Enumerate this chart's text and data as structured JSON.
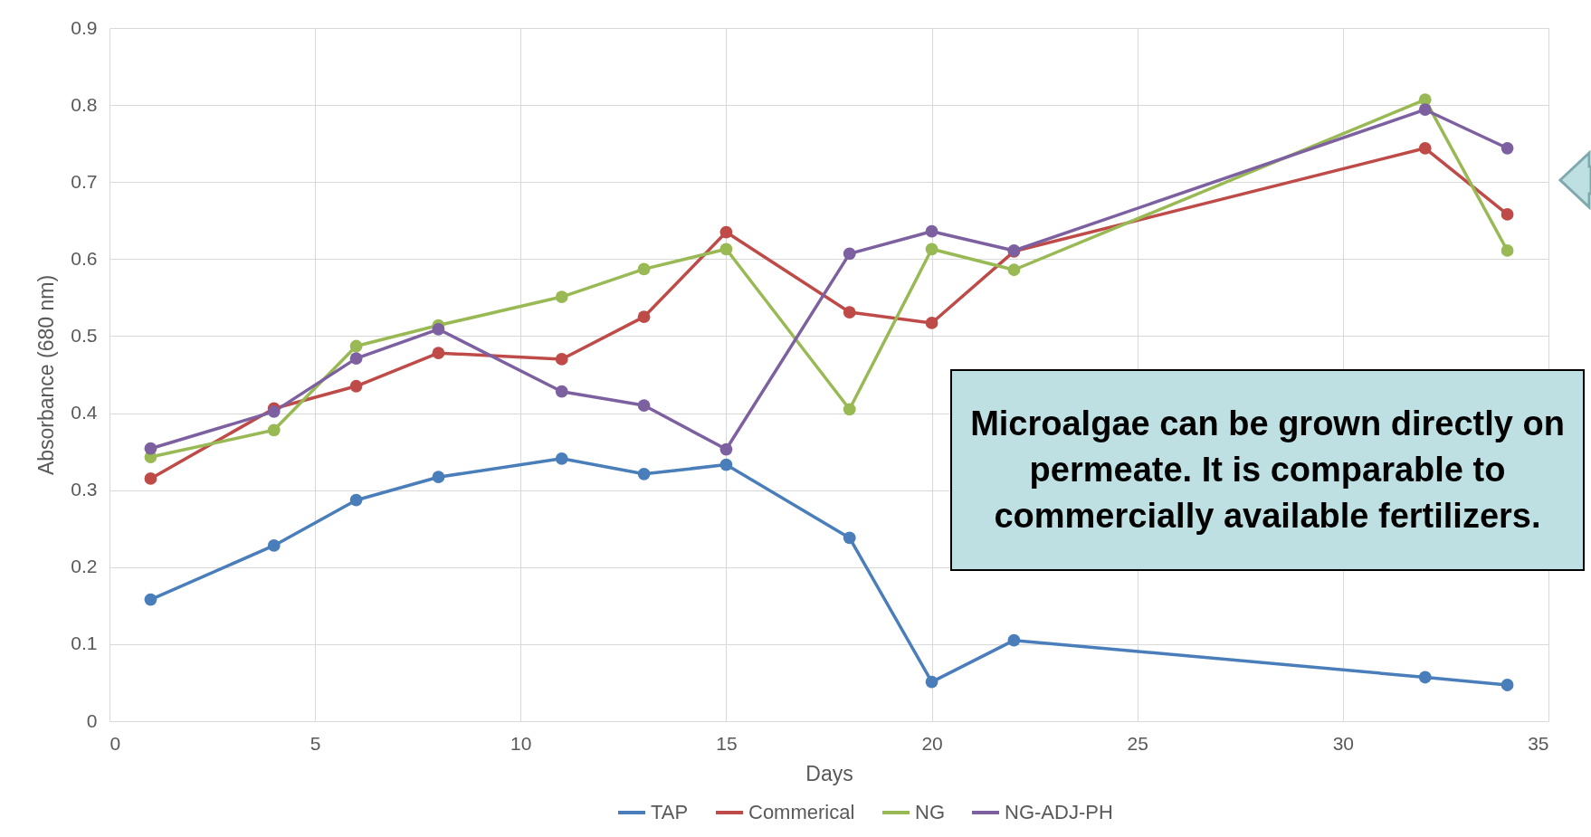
{
  "chart_data": {
    "type": "line",
    "xlabel": "Days",
    "ylabel": "Absorbance (680 nm)",
    "x": [
      1,
      4,
      6,
      8,
      11,
      13,
      15,
      18,
      20,
      22,
      32,
      34
    ],
    "series": [
      {
        "name": "TAP",
        "color": "#4a7ebb",
        "values": [
          0.158,
          0.228,
          0.287,
          0.317,
          0.341,
          0.321,
          0.333,
          0.238,
          0.051,
          0.105,
          0.057,
          0.047
        ]
      },
      {
        "name": "Commerical",
        "color": "#be4b48",
        "values": [
          0.315,
          0.406,
          0.435,
          0.478,
          0.47,
          0.525,
          0.635,
          0.531,
          0.517,
          0.61,
          0.744,
          0.658
        ]
      },
      {
        "name": "NG",
        "color": "#98b954",
        "values": [
          0.343,
          0.378,
          0.487,
          0.514,
          0.551,
          0.587,
          0.613,
          0.405,
          0.613,
          0.586,
          0.807,
          0.611
        ]
      },
      {
        "name": "NG-ADJ-PH",
        "color": "#7d60a0",
        "values": [
          0.354,
          0.402,
          0.471,
          0.509,
          0.428,
          0.41,
          0.353,
          0.607,
          0.636,
          0.611,
          0.794,
          0.744
        ]
      }
    ],
    "xlim": [
      0,
      35
    ],
    "xticks": [
      0,
      5,
      10,
      15,
      20,
      25,
      30,
      35
    ],
    "ylim": [
      0,
      0.9
    ],
    "yticks": [
      {
        "value": 0,
        "label": "0"
      },
      0.1,
      0.2,
      0.3,
      0.4,
      0.5,
      0.6,
      0.7,
      0.8,
      0.9
    ],
    "grid": true,
    "legend": "bottom",
    "marker": "circle",
    "line_style": "solid",
    "annotations": [
      "Microalgae can be grown directly on permeate. It is comparable to commercially available fertilizers."
    ]
  }
}
